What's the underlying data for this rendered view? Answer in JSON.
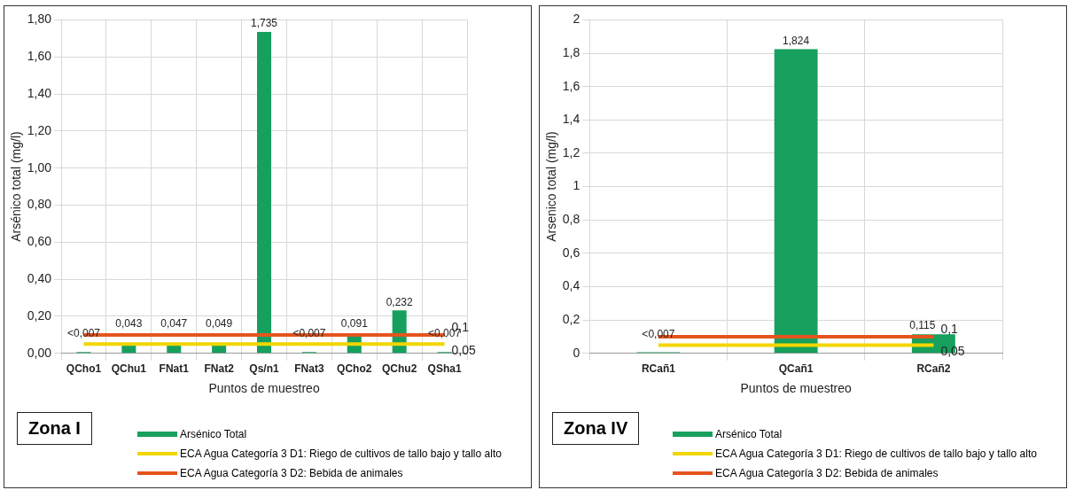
{
  "chart_data": [
    {
      "type": "bar",
      "title": "Zona I",
      "xlabel": "Puntos de muestreo",
      "ylabel": "Arsénico total (mg/l)",
      "categories": [
        "QCho1",
        "QChu1",
        "FNat1",
        "FNat2",
        "Qs/n1",
        "FNat3",
        "QCho2",
        "QChu2",
        "QSha1"
      ],
      "series": [
        {
          "name": "Arsénico Total",
          "color": "#17a05d",
          "values": [
            0.007,
            0.043,
            0.047,
            0.049,
            1.735,
            0.007,
            0.091,
            0.232,
            0.007
          ],
          "value_labels": [
            "<0,007",
            "0,043",
            "0,047",
            "0,049",
            "1,735",
            "<0,007",
            "0,091",
            "0,232",
            "<0,007"
          ]
        },
        {
          "type": "line",
          "name": "ECA Agua Categoría 3 D1: Riego de cultivos de tallo bajo y tallo alto",
          "color": "#f2d600",
          "values": [
            0.05,
            0.05,
            0.05,
            0.05,
            0.05,
            0.05,
            0.05,
            0.05,
            0.05
          ],
          "value_labels": [
            null,
            null,
            null,
            null,
            null,
            null,
            null,
            null,
            "0,05"
          ]
        },
        {
          "type": "line",
          "name": "ECA Agua Categoría 3 D2: Bebida de animales",
          "color": "#e5541e",
          "values": [
            0.1,
            0.1,
            0.1,
            0.1,
            0.1,
            0.1,
            0.1,
            0.1,
            0.1
          ],
          "value_labels": [
            null,
            null,
            null,
            null,
            null,
            null,
            null,
            null,
            "0,1"
          ]
        }
      ],
      "ylim": [
        0,
        1.8
      ],
      "yticks": [
        {
          "value": 0,
          "label": "0,00"
        },
        {
          "value": 0.2,
          "label": "0,20"
        },
        {
          "value": 0.4,
          "label": "0,40"
        },
        {
          "value": 0.6,
          "label": "0,60"
        },
        {
          "value": 0.8,
          "label": "0,80"
        },
        {
          "value": 1,
          "label": "1,00"
        },
        {
          "value": 1.2,
          "label": "1,20"
        },
        {
          "value": 1.4,
          "label": "1,40"
        },
        {
          "value": 1.6,
          "label": "1,60"
        },
        {
          "value": 1.8,
          "label": "1,80"
        }
      ],
      "grid": true,
      "legend": "bottom",
      "marker": "none",
      "line_style": "solid"
    },
    {
      "type": "bar",
      "title": "Zona IV",
      "xlabel": "Puntos de muestreo",
      "ylabel": "Arsenico total (mg/l)",
      "categories": [
        "RCañ1",
        "QCañ1",
        "RCañ2"
      ],
      "series": [
        {
          "name": "Arsénico Total",
          "color": "#17a05d",
          "values": [
            0.007,
            1.824,
            0.115
          ],
          "value_labels": [
            "<0,007",
            "1,824",
            "0,115"
          ]
        },
        {
          "type": "line",
          "name": "ECA Agua Categoría 3 D1: Riego de cultivos de tallo bajo y tallo alto",
          "color": "#f2d600",
          "values": [
            0.05,
            0.05,
            0.05
          ],
          "value_labels": [
            null,
            null,
            "0,05"
          ]
        },
        {
          "type": "line",
          "name": "ECA Agua Categoría 3 D2: Bebida de animales",
          "color": "#e5541e",
          "values": [
            0.1,
            0.1,
            0.1
          ],
          "value_labels": [
            null,
            null,
            "0,1"
          ]
        }
      ],
      "ylim": [
        0,
        2
      ],
      "yticks": [
        0,
        {
          "value": 0.2,
          "label": "0,2"
        },
        {
          "value": 0.4,
          "label": "0,4"
        },
        {
          "value": 0.6,
          "label": "0,6"
        },
        {
          "value": 0.8,
          "label": "0,8"
        },
        1,
        {
          "value": 1.2,
          "label": "1,2"
        },
        {
          "value": 1.4,
          "label": "1,4"
        },
        {
          "value": 1.6,
          "label": "1,6"
        },
        {
          "value": 1.8,
          "label": "1,8"
        },
        2
      ],
      "grid": true,
      "legend": "bottom",
      "marker": "none",
      "line_style": "solid"
    }
  ]
}
